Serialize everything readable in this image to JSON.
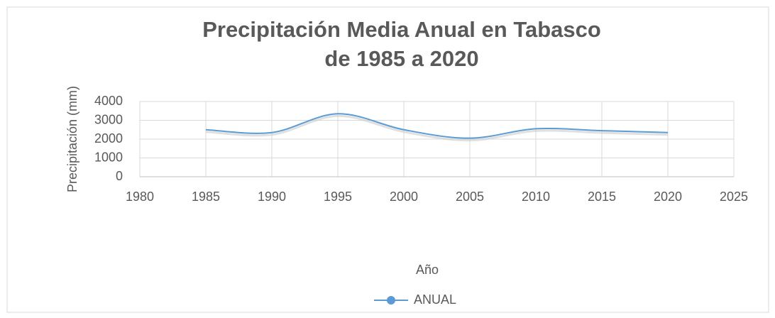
{
  "chart_data": {
    "type": "line",
    "title": [
      "Precipitación Media Anual en Tabasco",
      "de 1985 a 2020"
    ],
    "x_label": "Año",
    "y_label": "Precipitación (mm)",
    "x": [
      1985,
      1990,
      1995,
      2000,
      2005,
      2010,
      2015,
      2020
    ],
    "series": [
      {
        "name": "ANUAL",
        "color": "#5b9bd5",
        "values": [
          2500,
          2350,
          3350,
          2500,
          2050,
          2550,
          2450,
          2350
        ]
      }
    ],
    "xlim": [
      1980,
      2025
    ],
    "xticks": [
      1980,
      1985,
      1990,
      1995,
      2000,
      2005,
      2010,
      2015,
      2020,
      2025
    ],
    "ylim": [
      0,
      4000
    ],
    "yticks": [
      0,
      1000,
      2000,
      3000,
      4000
    ],
    "grid": true,
    "smooth": true,
    "legend": "bottom"
  }
}
